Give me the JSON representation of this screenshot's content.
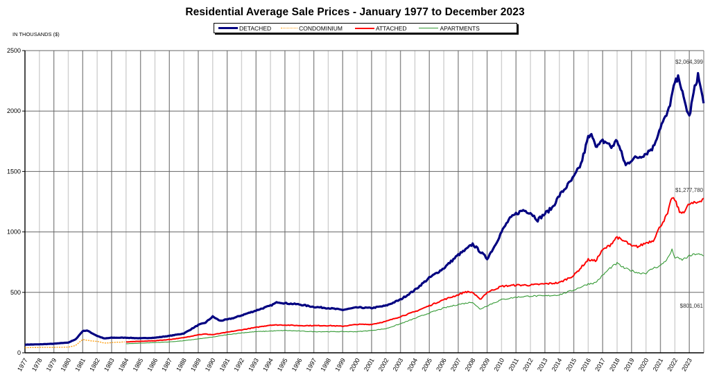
{
  "chart_data": {
    "type": "line",
    "title": "Residential Average Sale Prices  -  January 1977 to December 2023",
    "ylabel": "IN THOUSANDS ($)",
    "xlabel": "",
    "ylim": [
      0,
      2500
    ],
    "yticks": [
      0,
      500,
      1000,
      1500,
      2000,
      2500
    ],
    "xlim": [
      1977,
      2024
    ],
    "x_tick_labels": [
      "1977",
      "1978",
      "1979",
      "1980",
      "1981",
      "1982",
      "1983",
      "1984",
      "1985",
      "1986",
      "1987",
      "1988",
      "1989",
      "1990",
      "1991",
      "1992",
      "1993",
      "1994",
      "1995",
      "1996",
      "1997",
      "1998",
      "1999",
      "2000",
      "2001",
      "2002",
      "2003",
      "2004",
      "2005",
      "2006",
      "2007",
      "2008",
      "2009",
      "2010",
      "2011",
      "2012",
      "2013",
      "2014",
      "2015",
      "2016",
      "2017",
      "2018",
      "2019",
      "2020",
      "2021",
      "2022",
      "2023"
    ],
    "grid": true,
    "legend_position": "top-center",
    "series": [
      {
        "name": "DETACHED",
        "color": "#000080",
        "style": "solid-thick",
        "x": [
          1977,
          1978,
          1979,
          1980,
          1980.5,
          1981,
          1981.3,
          1981.6,
          1982,
          1982.5,
          1983,
          1984,
          1985,
          1986,
          1987,
          1988,
          1989,
          1989.5,
          1990,
          1990.5,
          1991,
          1991.5,
          1992,
          1993,
          1994,
          1994.5,
          1995,
          1996,
          1997,
          1998,
          1999,
          2000,
          2001,
          2002,
          2003,
          2004,
          2005,
          2006,
          2007,
          2007.5,
          2008,
          2008.5,
          2009,
          2009.5,
          2010,
          2010.5,
          2011,
          2011.5,
          2012,
          2012.5,
          2013,
          2013.5,
          2014,
          2015,
          2015.5,
          2016,
          2016.3,
          2016.6,
          2017,
          2017.3,
          2017.6,
          2018,
          2018.3,
          2018.6,
          2019,
          2019.5,
          2020,
          2020.5,
          2021,
          2021.5,
          2022,
          2022.3,
          2022.6,
          2023,
          2023.3,
          2023.6,
          2023.99
        ],
        "values": [
          68,
          70,
          75,
          85,
          110,
          180,
          185,
          165,
          140,
          118,
          125,
          125,
          120,
          125,
          140,
          160,
          230,
          250,
          300,
          265,
          275,
          290,
          310,
          350,
          390,
          420,
          410,
          400,
          380,
          370,
          355,
          375,
          370,
          390,
          440,
          520,
          620,
          700,
          810,
          850,
          900,
          840,
          780,
          880,
          1000,
          1100,
          1150,
          1180,
          1160,
          1100,
          1150,
          1200,
          1300,
          1450,
          1560,
          1780,
          1800,
          1700,
          1750,
          1740,
          1700,
          1760,
          1650,
          1550,
          1600,
          1620,
          1650,
          1700,
          1870,
          1980,
          2230,
          2280,
          2100,
          1950,
          2150,
          2300,
          2064
        ]
      },
      {
        "name": "CONDOMINIUM",
        "color": "#FF9900",
        "style": "dotted",
        "x": [
          1977,
          1978,
          1979,
          1980,
          1980.5,
          1981,
          1981.5,
          1982,
          1982.5,
          1983,
          1983.9
        ],
        "values": [
          42,
          45,
          45,
          47,
          60,
          110,
          100,
          95,
          80,
          85,
          90
        ]
      },
      {
        "name": "ATTACHED",
        "color": "#FF0000",
        "style": "solid",
        "x": [
          1984,
          1985,
          1986,
          1987,
          1988,
          1989,
          1989.5,
          1990,
          1991,
          1992,
          1993,
          1994,
          1995,
          1996,
          1997,
          1998,
          1999,
          2000,
          2001,
          2002,
          2003,
          2004,
          2005,
          2006,
          2007,
          2007.5,
          2008,
          2008.5,
          2009,
          2010,
          2011,
          2012,
          2013,
          2014,
          2015,
          2016,
          2016.5,
          2017,
          2017.5,
          2018,
          2018.3,
          2018.6,
          2019,
          2019.5,
          2020,
          2020.5,
          2021,
          2021.5,
          2021.8,
          2022,
          2022.4,
          2022.7,
          2023,
          2023.5,
          2023.99
        ],
        "values": [
          90,
          95,
          100,
          110,
          125,
          150,
          155,
          150,
          170,
          190,
          210,
          230,
          230,
          225,
          225,
          225,
          220,
          235,
          235,
          260,
          300,
          340,
          390,
          440,
          480,
          505,
          500,
          440,
          500,
          550,
          560,
          560,
          570,
          580,
          640,
          770,
          760,
          850,
          890,
          960,
          930,
          920,
          880,
          880,
          910,
          930,
          1050,
          1150,
          1290,
          1260,
          1150,
          1180,
          1230,
          1240,
          1278
        ]
      },
      {
        "name": "APARTMENTS",
        "color": "#339933",
        "style": "solid-thin",
        "x": [
          1984,
          1985,
          1986,
          1987,
          1988,
          1989,
          1990,
          1991,
          1992,
          1993,
          1994,
          1995,
          1996,
          1997,
          1998,
          1999,
          2000,
          2001,
          2002,
          2003,
          2004,
          2005,
          2006,
          2007,
          2008,
          2008.5,
          2009,
          2010,
          2011,
          2012,
          2013,
          2014,
          2015,
          2016,
          2016.5,
          2017,
          2017.5,
          2018,
          2018.5,
          2019,
          2019.5,
          2020,
          2020.5,
          2021,
          2021.5,
          2021.8,
          2022,
          2022.5,
          2023,
          2023.5,
          2023.99
        ],
        "values": [
          75,
          80,
          85,
          90,
          100,
          115,
          130,
          150,
          165,
          175,
          180,
          185,
          180,
          175,
          175,
          175,
          175,
          185,
          200,
          240,
          285,
          330,
          370,
          400,
          420,
          360,
          390,
          440,
          460,
          470,
          470,
          480,
          520,
          570,
          580,
          640,
          700,
          740,
          700,
          680,
          660,
          660,
          700,
          720,
          780,
          850,
          790,
          770,
          800,
          820,
          801
        ]
      }
    ],
    "annotations": [
      {
        "series": "DETACHED",
        "text": "$2,064,399"
      },
      {
        "series": "ATTACHED",
        "text": "$1,277,780"
      },
      {
        "series": "APARTMENTS",
        "text": "$801,061"
      }
    ]
  }
}
